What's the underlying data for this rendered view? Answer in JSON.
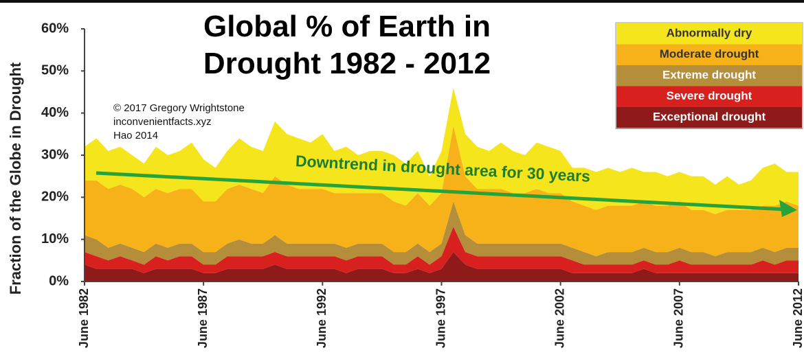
{
  "chart_data": {
    "type": "stacked_area",
    "title": "Global % of Earth in Drought 1982 - 2012",
    "y_label": "Fraction of the Globe in Drought",
    "annotations": [
      "© 2017 Gregory Wrightstone",
      "inconvenientfacts.xyz",
      "Hao 2014"
    ],
    "trend_label": "Downtrend in drought area for 30 years",
    "legend": "upper right",
    "x": [
      "1982-06",
      "1982-12",
      "1983-06",
      "1983-12",
      "1984-06",
      "1984-12",
      "1985-06",
      "1985-12",
      "1986-06",
      "1986-12",
      "1987-06",
      "1987-12",
      "1988-06",
      "1988-12",
      "1989-06",
      "1989-12",
      "1990-06",
      "1990-12",
      "1991-06",
      "1991-12",
      "1992-06",
      "1992-12",
      "1993-06",
      "1993-12",
      "1994-06",
      "1994-12",
      "1995-06",
      "1995-12",
      "1996-06",
      "1996-12",
      "1997-06",
      "1997-12",
      "1998-06",
      "1998-12",
      "1999-06",
      "1999-12",
      "2000-06",
      "2000-12",
      "2001-06",
      "2001-12",
      "2002-06",
      "2002-12",
      "2003-06",
      "2003-12",
      "2004-06",
      "2004-12",
      "2005-06",
      "2005-12",
      "2006-06",
      "2006-12",
      "2007-06",
      "2007-12",
      "2008-06",
      "2008-12",
      "2009-06",
      "2009-12",
      "2010-06",
      "2010-12",
      "2011-06",
      "2011-12",
      "2012-06"
    ],
    "xlim": [
      "1982-06",
      "2012-06"
    ],
    "xticks": [
      {
        "value": "1982-06",
        "label": "June 1982"
      },
      {
        "value": "1987-06",
        "label": "June 1987"
      },
      {
        "value": "1992-06",
        "label": "June 1992"
      },
      {
        "value": "1997-06",
        "label": "June 1997"
      },
      {
        "value": "2002-06",
        "label": "June 2002"
      },
      {
        "value": "2007-06",
        "label": "June 2007"
      },
      {
        "value": "2012-06",
        "label": "June 2012"
      }
    ],
    "ylim": [
      0,
      60
    ],
    "yticks": [
      {
        "value": 0,
        "label": "0%"
      },
      {
        "value": 10,
        "label": "10%"
      },
      {
        "value": 20,
        "label": "20%"
      },
      {
        "value": 30,
        "label": "30%"
      },
      {
        "value": 40,
        "label": "40%"
      },
      {
        "value": 50,
        "label": "50%"
      },
      {
        "value": 60,
        "label": "60%"
      }
    ],
    "series": [
      {
        "name": "Exceptional drought",
        "color": "#8e1a1a",
        "values": [
          4,
          3,
          3,
          3,
          3,
          2,
          3,
          3,
          3,
          3,
          2,
          2,
          3,
          3,
          3,
          3,
          4,
          3,
          3,
          3,
          3,
          3,
          2,
          3,
          3,
          3,
          2,
          2,
          3,
          2,
          3,
          7,
          4,
          3,
          3,
          3,
          3,
          3,
          3,
          3,
          3,
          2,
          2,
          2,
          2,
          2,
          2,
          3,
          2,
          2,
          2,
          2,
          2,
          2,
          2,
          2,
          2,
          2,
          2,
          2,
          2
        ]
      },
      {
        "name": "Severe drought",
        "color": "#d8201f",
        "values": [
          3,
          3,
          2,
          3,
          2,
          2,
          3,
          2,
          3,
          3,
          2,
          2,
          3,
          3,
          3,
          3,
          3,
          3,
          3,
          3,
          3,
          3,
          3,
          3,
          3,
          3,
          2,
          2,
          3,
          2,
          3,
          6,
          3,
          3,
          3,
          3,
          3,
          3,
          3,
          3,
          3,
          3,
          2,
          2,
          2,
          2,
          2,
          2,
          2,
          2,
          3,
          2,
          2,
          2,
          2,
          2,
          2,
          3,
          2,
          3,
          3
        ]
      },
      {
        "name": "Extreme drought",
        "color": "#b58e3c",
        "values": [
          4,
          4,
          3,
          3,
          3,
          3,
          3,
          3,
          3,
          3,
          3,
          3,
          3,
          4,
          3,
          3,
          4,
          3,
          3,
          3,
          3,
          3,
          3,
          3,
          3,
          3,
          3,
          3,
          3,
          3,
          3,
          6,
          4,
          3,
          3,
          3,
          3,
          3,
          3,
          3,
          3,
          3,
          3,
          2,
          3,
          3,
          3,
          3,
          3,
          3,
          3,
          3,
          3,
          2,
          3,
          3,
          3,
          3,
          3,
          3,
          3
        ]
      },
      {
        "name": "Moderate drought",
        "color": "#f7b21a",
        "values": [
          13,
          14,
          14,
          14,
          14,
          13,
          13,
          13,
          13,
          13,
          12,
          12,
          13,
          13,
          13,
          12,
          14,
          14,
          13,
          13,
          13,
          12,
          13,
          12,
          12,
          12,
          12,
          11,
          12,
          11,
          12,
          18,
          14,
          13,
          13,
          13,
          12,
          12,
          13,
          12,
          12,
          11,
          11,
          11,
          11,
          11,
          11,
          11,
          11,
          11,
          11,
          10,
          10,
          10,
          10,
          10,
          10,
          10,
          11,
          11,
          10
        ]
      },
      {
        "name": "Abnormally dry",
        "color": "#f5e51c",
        "values": [
          8,
          10,
          9,
          9,
          8,
          8,
          10,
          9,
          9,
          11,
          10,
          8,
          9,
          11,
          10,
          10,
          13,
          12,
          12,
          11,
          13,
          10,
          11,
          9,
          10,
          10,
          11,
          10,
          10,
          7,
          10,
          9,
          10,
          10,
          9,
          11,
          10,
          9,
          11,
          11,
          10,
          8,
          9,
          9,
          9,
          8,
          9,
          7,
          8,
          7,
          7,
          8,
          8,
          7,
          8,
          6,
          7,
          9,
          10,
          7,
          8
        ]
      }
    ]
  }
}
